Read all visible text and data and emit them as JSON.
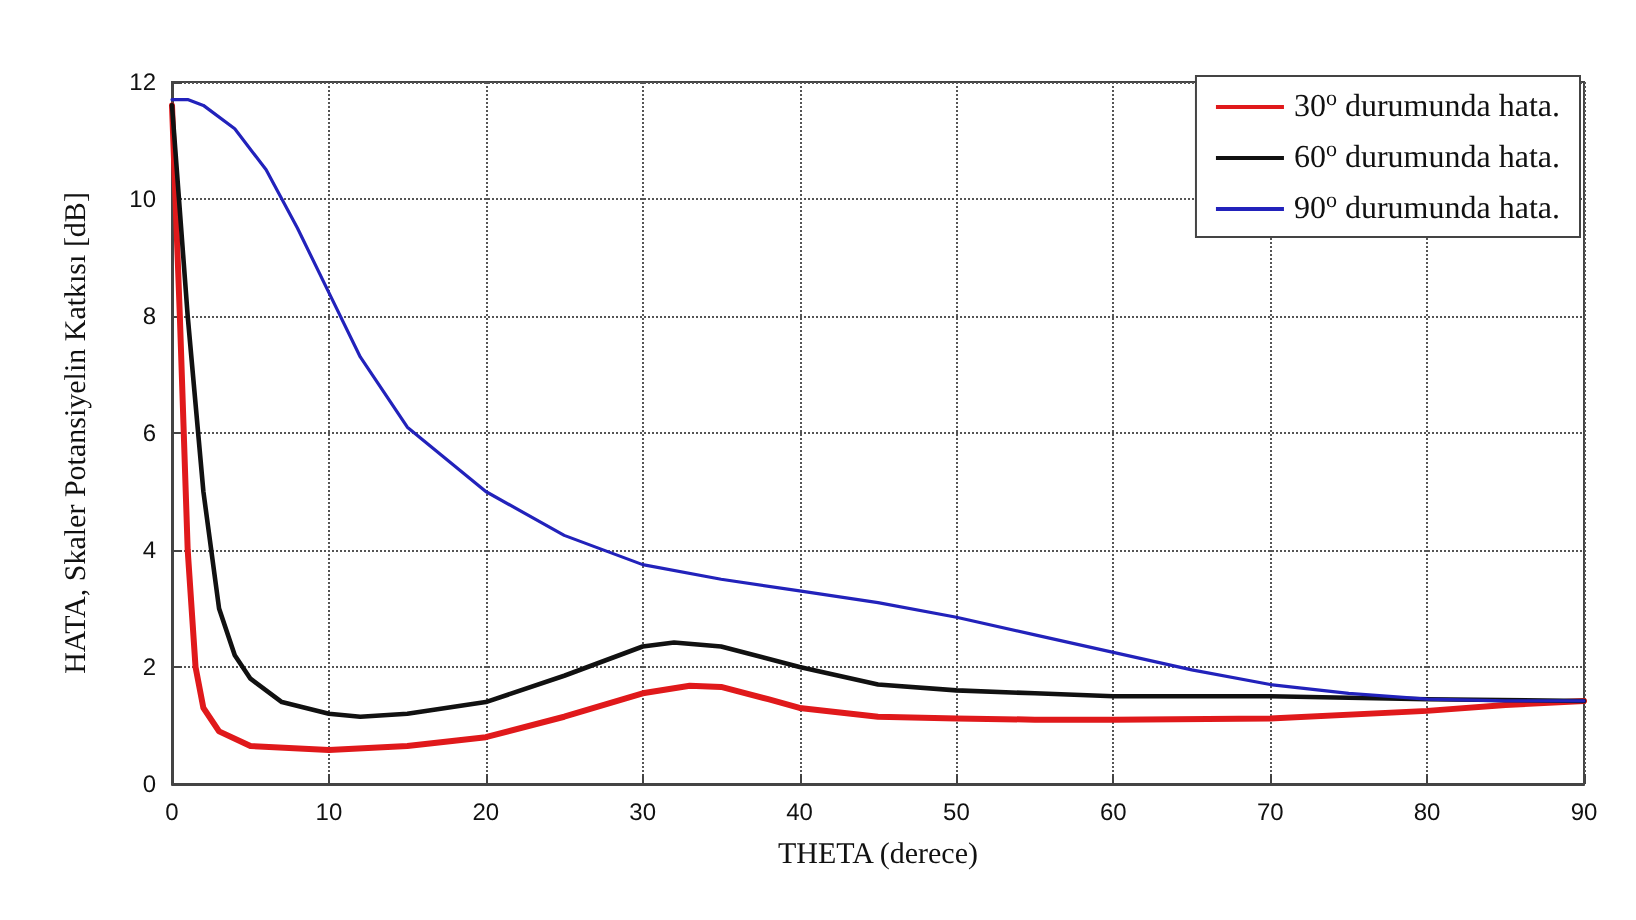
{
  "chart_data": {
    "type": "line",
    "xlabel": "THETA (derece)",
    "ylabel": "HATA, Skaler Potansiyelin Katkısı [dB]",
    "xlim": [
      0,
      90
    ],
    "xticks": [
      0,
      10,
      20,
      30,
      40,
      50,
      60,
      70,
      80,
      90
    ],
    "ylim": [
      0,
      12
    ],
    "yticks": [
      0,
      2,
      4,
      6,
      8,
      10,
      12
    ],
    "grid": true,
    "legend": "top right",
    "marker": "none",
    "line_style": "solid",
    "series": [
      {
        "name": "30$^{o}$ durumunda hata.",
        "color": "#e0191b",
        "x": [
          0,
          0.5,
          1,
          1.5,
          2,
          3,
          5,
          10,
          15,
          20,
          25,
          30,
          33,
          35,
          38,
          40,
          45,
          50,
          55,
          60,
          70,
          80,
          85,
          90
        ],
        "values": [
          11.6,
          8,
          4,
          2,
          1.3,
          0.9,
          0.65,
          0.58,
          0.65,
          0.8,
          1.15,
          1.55,
          1.68,
          1.66,
          1.45,
          1.3,
          1.15,
          1.12,
          1.1,
          1.1,
          1.12,
          1.25,
          1.35,
          1.42
        ]
      },
      {
        "name": "60$^{o}$ durumunda hata.",
        "color": "#111111",
        "x": [
          0,
          1,
          2,
          3,
          4,
          5,
          7,
          10,
          12,
          15,
          20,
          25,
          30,
          32,
          35,
          40,
          45,
          50,
          55,
          60,
          70,
          80,
          90
        ],
        "values": [
          11.6,
          8,
          5,
          3,
          2.2,
          1.8,
          1.4,
          1.2,
          1.15,
          1.2,
          1.4,
          1.85,
          2.35,
          2.42,
          2.35,
          2,
          1.7,
          1.6,
          1.55,
          1.5,
          1.5,
          1.45,
          1.42
        ]
      },
      {
        "name": "90$^{o}$ durumunda hata.",
        "color": "#2222bb",
        "x": [
          0,
          1,
          2,
          4,
          6,
          8,
          10,
          12,
          15,
          20,
          25,
          30,
          35,
          40,
          45,
          50,
          55,
          60,
          65,
          70,
          75,
          80,
          85,
          90
        ],
        "values": [
          11.7,
          11.7,
          11.6,
          11.2,
          10.5,
          9.5,
          8.4,
          7.3,
          6.1,
          5,
          4.25,
          3.75,
          3.5,
          3.3,
          3.1,
          2.85,
          2.55,
          2.25,
          1.95,
          1.7,
          1.55,
          1.45,
          1.42,
          1.42
        ]
      }
    ]
  }
}
